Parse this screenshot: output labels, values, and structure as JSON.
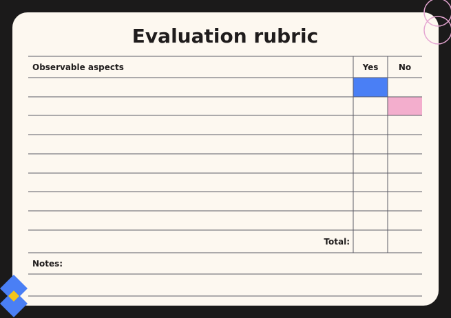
{
  "header": {
    "title": "Evaluation rubric"
  },
  "table": {
    "columns": [
      "Observable aspects",
      "Yes",
      "No"
    ],
    "total_label": "Total:"
  },
  "notes": {
    "label": "Notes:"
  }
}
